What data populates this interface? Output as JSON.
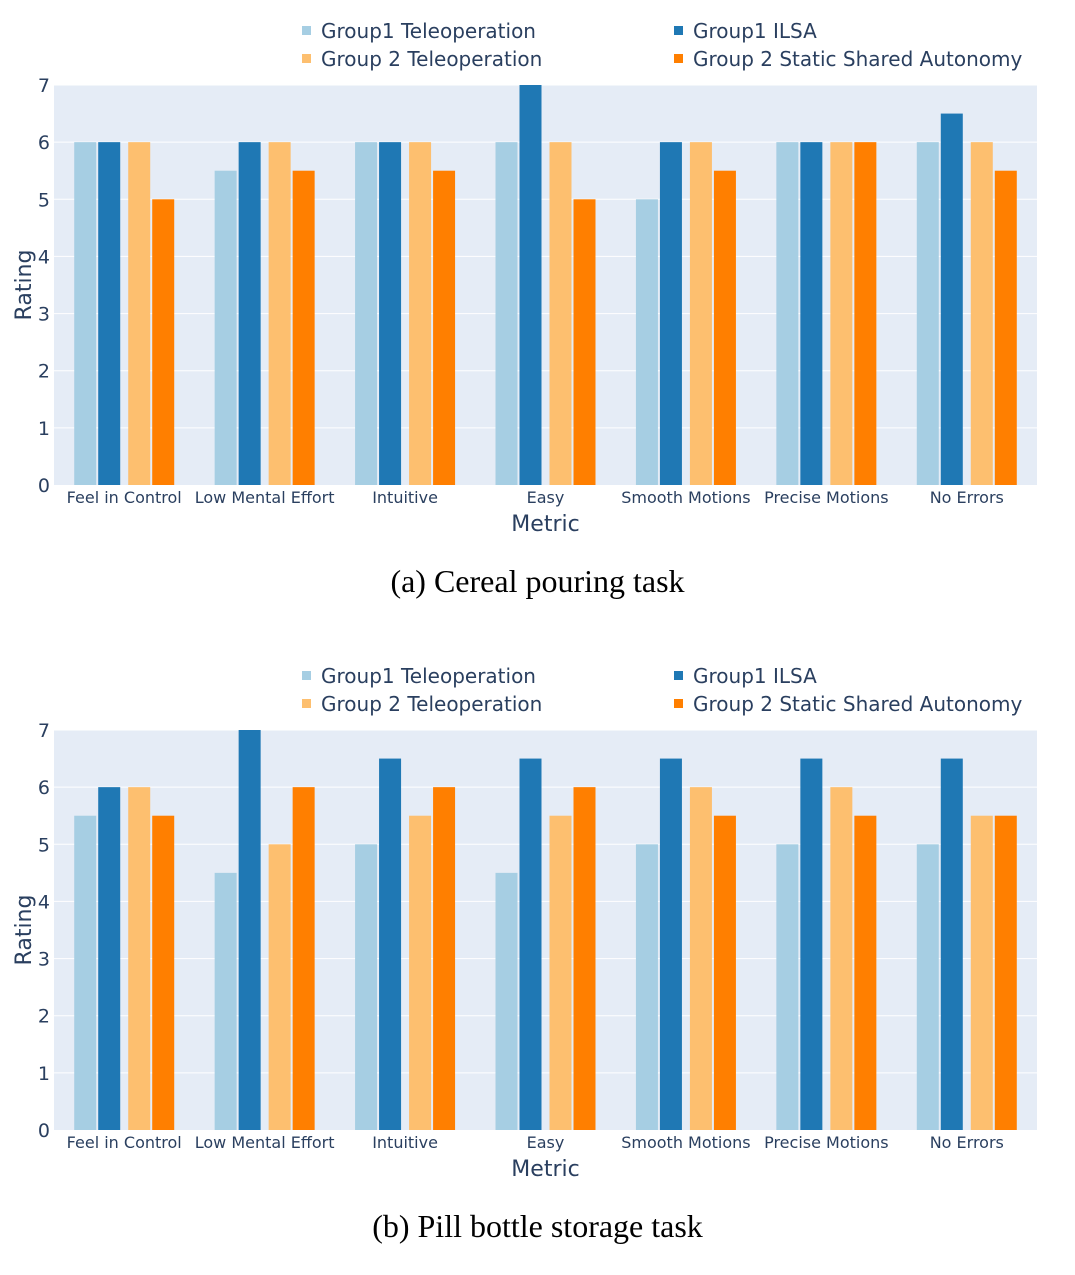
{
  "categories": [
    "Feel in Control",
    "Low Mental Effort",
    "Intuitive",
    "Easy",
    "Smooth Motions",
    "Precise Motions",
    "No Errors"
  ],
  "legend": [
    {
      "name": "Group1 Teleoperation",
      "color": "#a6cee3"
    },
    {
      "name": "Group1 ILSA",
      "color": "#1f78b4"
    },
    {
      "name": "Group 2 Teleoperation",
      "color": "#fdbf6f"
    },
    {
      "name": "Group 2 Static Shared Autonomy",
      "color": "#ff7f00"
    }
  ],
  "chart_data": [
    {
      "type": "bar",
      "xlabel": "Metric",
      "ylabel": "Rating",
      "ylim": [
        0,
        7
      ],
      "yticks": [
        0,
        1,
        2,
        3,
        4,
        5,
        6,
        7
      ],
      "grid": true,
      "legend_position": "top-right",
      "categories": [
        "Feel in Control",
        "Low Mental Effort",
        "Intuitive",
        "Easy",
        "Smooth Motions",
        "Precise Motions",
        "No Errors"
      ],
      "series": [
        {
          "name": "Group1 Teleoperation",
          "values": [
            6,
            5.5,
            6,
            6,
            5,
            6,
            6
          ]
        },
        {
          "name": "Group1 ILSA",
          "values": [
            6,
            6,
            6,
            7,
            6,
            6,
            6.5
          ]
        },
        {
          "name": "Group 2 Teleoperation",
          "values": [
            6,
            6,
            6,
            6,
            6,
            6,
            6
          ]
        },
        {
          "name": "Group 2 Static Shared Autonomy",
          "values": [
            5,
            5.5,
            5.5,
            5,
            5.5,
            6,
            5.5
          ]
        }
      ],
      "caption": "(a)  Cereal pouring task"
    },
    {
      "type": "bar",
      "xlabel": "Metric",
      "ylabel": "Rating",
      "ylim": [
        0,
        7
      ],
      "yticks": [
        0,
        1,
        2,
        3,
        4,
        5,
        6,
        7
      ],
      "grid": true,
      "legend_position": "top-right",
      "categories": [
        "Feel in Control",
        "Low Mental Effort",
        "Intuitive",
        "Easy",
        "Smooth Motions",
        "Precise Motions",
        "No Errors"
      ],
      "series": [
        {
          "name": "Group1 Teleoperation",
          "values": [
            5.5,
            4.5,
            5,
            4.5,
            5,
            5,
            5
          ]
        },
        {
          "name": "Group1 ILSA",
          "values": [
            6,
            7,
            6.5,
            6.5,
            6.5,
            6.5,
            6.5
          ]
        },
        {
          "name": "Group 2 Teleoperation",
          "values": [
            6,
            5,
            5.5,
            5.5,
            6,
            6,
            5.5
          ]
        },
        {
          "name": "Group 2 Static Shared Autonomy",
          "values": [
            5.5,
            6,
            6,
            6,
            5.5,
            5.5,
            5.5
          ]
        }
      ],
      "caption": "(b)  Pill bottle storage task"
    }
  ]
}
